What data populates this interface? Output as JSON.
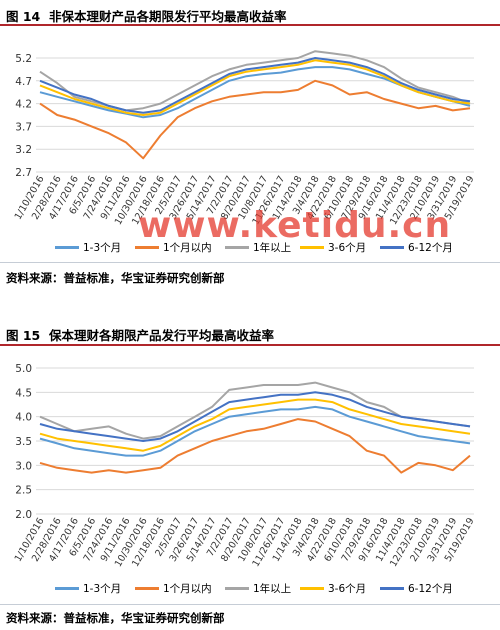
{
  "watermark": "www.ketidu.cn",
  "colors": [
    "#5b9bd5",
    "#ed7d31",
    "#a5a5a5",
    "#ffc000",
    "#4472c4"
  ],
  "chart_data": [
    {
      "type": "line",
      "title_prefix": "图 14",
      "title": "非保本理财产品各期限发行平均最高收益率",
      "source": "资料来源：普益标准，华宝证券研究创新部",
      "ylim": [
        2.7,
        5.2
      ],
      "yticks": [
        2.7,
        3.2,
        3.7,
        4.2,
        4.7,
        5.2
      ],
      "x_labels": [
        "1/10/2016",
        "2/28/2016",
        "4/17/2016",
        "6/5/2016",
        "7/24/2016",
        "9/11/2016",
        "10/30/2016",
        "12/18/2016",
        "2/5/2017",
        "3/26/2017",
        "5/14/2017",
        "7/2/2017",
        "8/20/2017",
        "10/8/2017",
        "11/26/2017",
        "1/14/2018",
        "3/4/2018",
        "4/22/2018",
        "6/10/2018",
        "7/29/2018",
        "9/16/2018",
        "11/4/2018",
        "12/23/2018",
        "2/10/2019",
        "3/31/2019",
        "5/19/2019"
      ],
      "series": [
        {
          "name": "1-3个月",
          "values": [
            4.45,
            4.35,
            4.25,
            4.15,
            4.05,
            3.98,
            3.9,
            3.95,
            4.1,
            4.3,
            4.5,
            4.7,
            4.8,
            4.85,
            4.88,
            4.95,
            5.0,
            5.0,
            4.95,
            4.85,
            4.75,
            4.6,
            4.45,
            4.35,
            4.25,
            4.15
          ]
        },
        {
          "name": "1个月以内",
          "values": [
            4.2,
            3.95,
            3.85,
            3.7,
            3.55,
            3.35,
            3.0,
            3.5,
            3.9,
            4.1,
            4.25,
            4.35,
            4.4,
            4.45,
            4.45,
            4.5,
            4.7,
            4.6,
            4.4,
            4.45,
            4.3,
            4.2,
            4.1,
            4.15,
            4.05,
            4.1
          ]
        },
        {
          "name": "1年以上",
          "values": [
            4.9,
            4.65,
            4.35,
            4.25,
            4.15,
            4.05,
            4.1,
            4.2,
            4.4,
            4.6,
            4.8,
            4.95,
            5.05,
            5.1,
            5.15,
            5.2,
            5.35,
            5.3,
            5.25,
            5.15,
            5.0,
            4.75,
            4.55,
            4.45,
            4.35,
            4.2
          ]
        },
        {
          "name": "3-6个月",
          "values": [
            4.6,
            4.45,
            4.3,
            4.2,
            4.1,
            4.0,
            3.95,
            4.0,
            4.2,
            4.4,
            4.6,
            4.8,
            4.9,
            4.95,
            5.0,
            5.05,
            5.15,
            5.1,
            5.05,
            4.95,
            4.8,
            4.6,
            4.45,
            4.35,
            4.25,
            4.2
          ]
        },
        {
          "name": "6-12个月",
          "values": [
            4.7,
            4.55,
            4.4,
            4.3,
            4.15,
            4.05,
            4.0,
            4.05,
            4.25,
            4.45,
            4.65,
            4.85,
            4.95,
            5.0,
            5.05,
            5.1,
            5.2,
            5.15,
            5.1,
            5.0,
            4.85,
            4.65,
            4.5,
            4.4,
            4.3,
            4.25
          ]
        }
      ]
    },
    {
      "type": "line",
      "title_prefix": "图 15",
      "title": "保本理财各期限产品发行平均最高收益率",
      "source": "资料来源：普益标准，华宝证券研究创新部",
      "ylim": [
        2.0,
        5.0
      ],
      "yticks": [
        2.0,
        2.5,
        3.0,
        3.5,
        4.0,
        4.5,
        5.0
      ],
      "x_labels": [
        "1/10/2016",
        "2/28/2016",
        "4/17/2016",
        "6/5/2016",
        "7/24/2016",
        "9/11/2016",
        "10/30/2016",
        "12/18/2016",
        "2/5/2017",
        "3/26/2017",
        "5/14/2017",
        "7/2/2017",
        "8/20/2017",
        "10/8/2017",
        "11/26/2017",
        "1/14/2018",
        "3/4/2018",
        "4/22/2018",
        "6/10/2018",
        "7/29/2018",
        "9/16/2018",
        "11/4/2018",
        "12/23/2018",
        "2/10/2019",
        "3/31/2019",
        "5/19/2019"
      ],
      "series": [
        {
          "name": "1-3个月",
          "values": [
            3.55,
            3.45,
            3.35,
            3.3,
            3.25,
            3.2,
            3.2,
            3.3,
            3.5,
            3.7,
            3.85,
            4.0,
            4.05,
            4.1,
            4.15,
            4.15,
            4.2,
            4.15,
            4.0,
            3.9,
            3.8,
            3.7,
            3.6,
            3.55,
            3.5,
            3.45
          ]
        },
        {
          "name": "1个月以内",
          "values": [
            3.05,
            2.95,
            2.9,
            2.85,
            2.9,
            2.85,
            2.9,
            2.95,
            3.2,
            3.35,
            3.5,
            3.6,
            3.7,
            3.75,
            3.85,
            3.95,
            3.9,
            3.75,
            3.6,
            3.3,
            3.2,
            2.85,
            3.05,
            3.0,
            2.9,
            3.2
          ]
        },
        {
          "name": "1年以上",
          "values": [
            4.0,
            3.85,
            3.7,
            3.75,
            3.8,
            3.65,
            3.55,
            3.6,
            3.8,
            4.0,
            4.2,
            4.55,
            4.6,
            4.65,
            4.65,
            4.65,
            4.7,
            4.6,
            4.5,
            4.3,
            4.2,
            4.0,
            3.95,
            3.9,
            3.85,
            3.8
          ]
        },
        {
          "name": "3-6个月",
          "values": [
            3.65,
            3.55,
            3.5,
            3.45,
            3.4,
            3.35,
            3.3,
            3.4,
            3.6,
            3.8,
            3.95,
            4.15,
            4.2,
            4.25,
            4.3,
            4.35,
            4.35,
            4.3,
            4.15,
            4.05,
            3.95,
            3.85,
            3.8,
            3.75,
            3.7,
            3.65
          ]
        },
        {
          "name": "6-12个月",
          "values": [
            3.85,
            3.75,
            3.7,
            3.65,
            3.6,
            3.55,
            3.5,
            3.55,
            3.7,
            3.9,
            4.1,
            4.3,
            4.35,
            4.4,
            4.45,
            4.45,
            4.5,
            4.45,
            4.35,
            4.2,
            4.1,
            4.0,
            3.95,
            3.9,
            3.85,
            3.8
          ]
        }
      ]
    }
  ]
}
